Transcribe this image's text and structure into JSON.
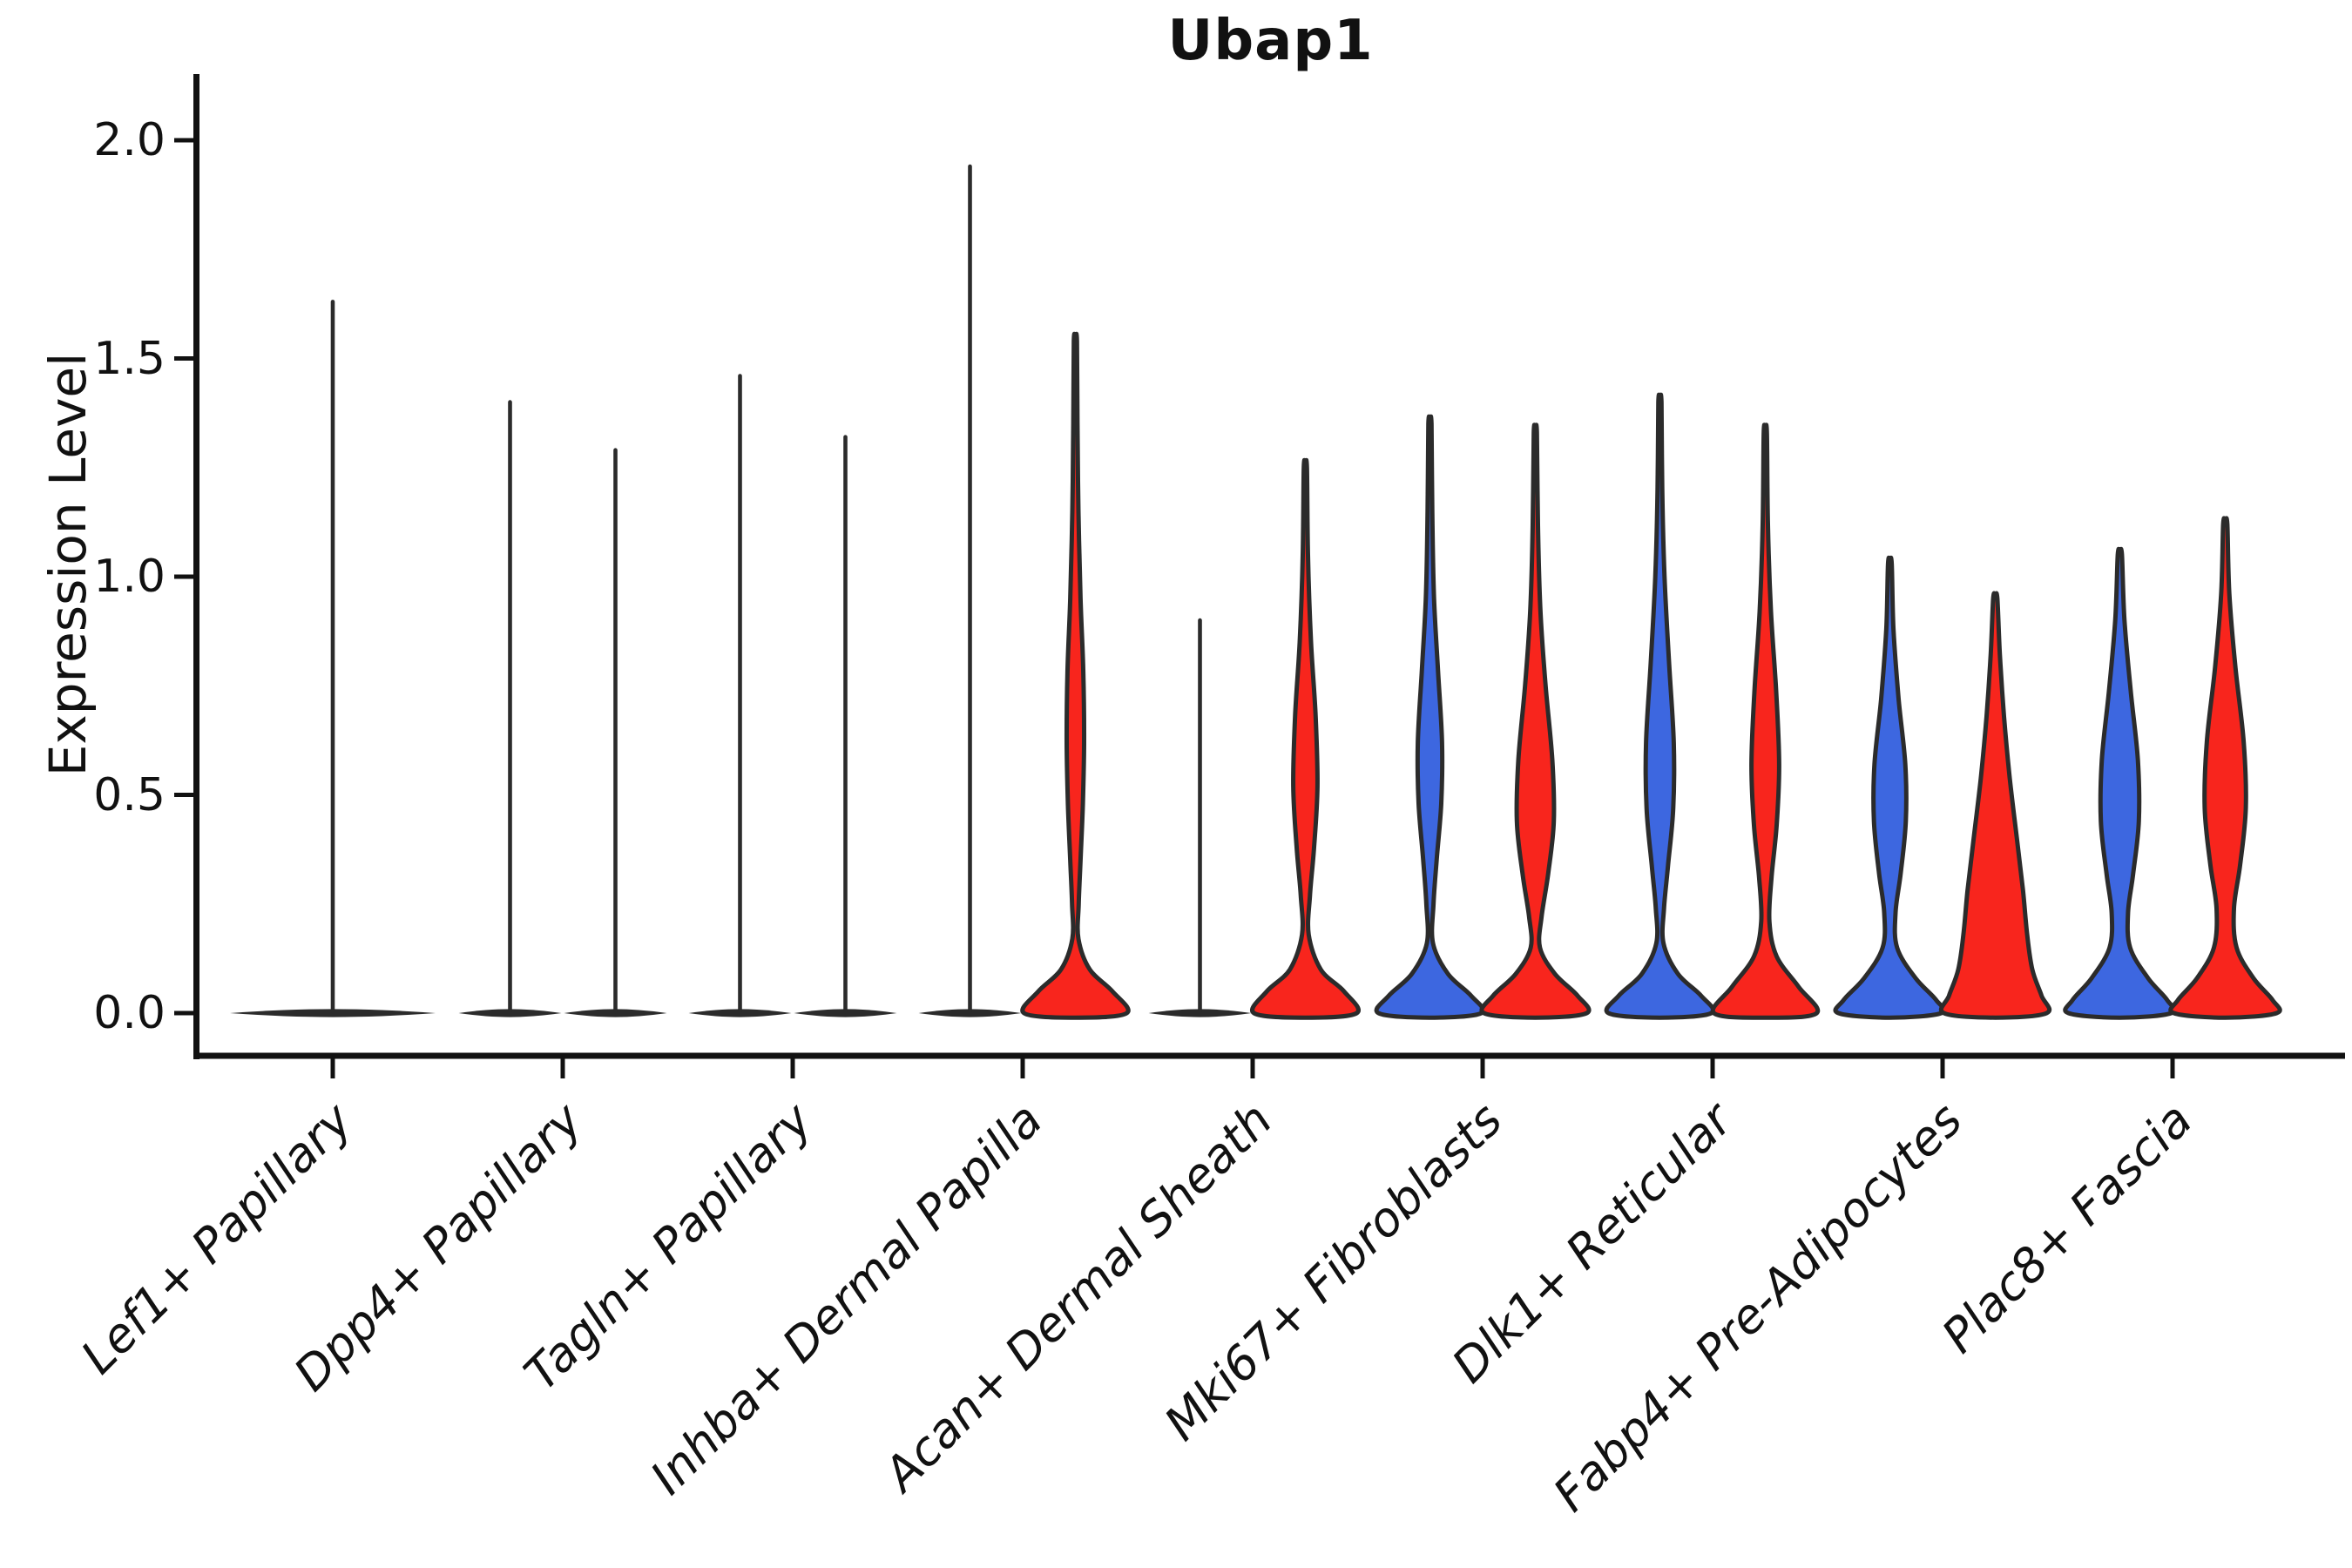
{
  "title": "Ubap1",
  "ylabel": "Expression Level",
  "colors": {
    "split_left_blue": "#3D67E0",
    "split_right_red": "#F8251D",
    "violin_outline": "#2B2B2B",
    "axis": "#111111",
    "background": "#FFFFFF"
  },
  "chart_data": {
    "type": "violin",
    "title": "Ubap1",
    "xlabel": "",
    "ylabel": "Expression Level",
    "ylim": [
      0,
      2.0
    ],
    "ytick_values": [
      0.0,
      0.5,
      1.0,
      1.5,
      2.0
    ],
    "ytick_labels": [
      "0.0",
      "0.5",
      "1.0",
      "1.5",
      "2.0"
    ],
    "grid": false,
    "legend": "none",
    "split_violins": true,
    "categories": [
      "Lef1+ Papillary",
      "Dpp4+ Papillary",
      "Tagln+ Papillary",
      "Inhba+ Dermal Papilla",
      "Acan+ Dermal Sheath",
      "Mki67+ Fibroblasts",
      "Dlk1+ Reticular",
      "Fabp4+ Pre-Adipocytes",
      "Plac8+ Fascia"
    ],
    "violins": [
      {
        "category": "Lef1+ Papillary",
        "groups": [
          {
            "side": "center",
            "style": "collapsed-line",
            "fill": null,
            "max_expression": 1.63,
            "width_scale": 2.0
          }
        ]
      },
      {
        "category": "Dpp4+ Papillary",
        "groups": [
          {
            "side": "left",
            "style": "collapsed-line",
            "fill": null,
            "max_expression": 1.4,
            "width_scale": 1.0
          },
          {
            "side": "right",
            "style": "collapsed-line",
            "fill": null,
            "max_expression": 1.29,
            "width_scale": 1.0
          }
        ]
      },
      {
        "category": "Tagln+ Papillary",
        "groups": [
          {
            "side": "left",
            "style": "collapsed-line",
            "fill": null,
            "max_expression": 1.46,
            "width_scale": 1.0
          },
          {
            "side": "right",
            "style": "collapsed-line",
            "fill": null,
            "max_expression": 1.32,
            "width_scale": 1.0
          }
        ]
      },
      {
        "category": "Inhba+ Dermal Papilla",
        "groups": [
          {
            "side": "left",
            "style": "collapsed-line",
            "fill": null,
            "max_expression": 1.94,
            "width_scale": 1.0
          },
          {
            "side": "right",
            "style": "filled",
            "fill": "#F8251D",
            "max_expression": 1.54,
            "width_scale": 1.0,
            "profile": [
              [
                1.54,
                0.03
              ],
              [
                1.35,
                0.04
              ],
              [
                1.15,
                0.06
              ],
              [
                0.95,
                0.1
              ],
              [
                0.78,
                0.155
              ],
              [
                0.62,
                0.17
              ],
              [
                0.48,
                0.145
              ],
              [
                0.35,
                0.1
              ],
              [
                0.25,
                0.065
              ],
              [
                0.17,
                0.06
              ],
              [
                0.1,
                0.28
              ],
              [
                0.05,
                0.72
              ],
              [
                0.0,
                1.0
              ]
            ]
          }
        ]
      },
      {
        "category": "Acan+ Dermal Sheath",
        "groups": [
          {
            "side": "left",
            "style": "collapsed-line",
            "fill": null,
            "max_expression": 0.9,
            "width_scale": 1.0
          },
          {
            "side": "right",
            "style": "filled",
            "fill": "#F8251D",
            "max_expression": 1.25,
            "width_scale": 1.0,
            "profile": [
              [
                1.25,
                0.03
              ],
              [
                1.05,
                0.05
              ],
              [
                0.85,
                0.11
              ],
              [
                0.68,
                0.2
              ],
              [
                0.52,
                0.235
              ],
              [
                0.38,
                0.17
              ],
              [
                0.27,
                0.09
              ],
              [
                0.18,
                0.065
              ],
              [
                0.1,
                0.3
              ],
              [
                0.05,
                0.75
              ],
              [
                0.0,
                1.0
              ]
            ]
          }
        ]
      },
      {
        "category": "Mki67+ Fibroblasts",
        "groups": [
          {
            "side": "left",
            "style": "filled",
            "fill": "#3D67E0",
            "max_expression": 1.35,
            "width_scale": 1.0,
            "profile": [
              [
                1.35,
                0.03
              ],
              [
                1.15,
                0.045
              ],
              [
                0.95,
                0.08
              ],
              [
                0.78,
                0.16
              ],
              [
                0.62,
                0.235
              ],
              [
                0.48,
                0.22
              ],
              [
                0.35,
                0.13
              ],
              [
                0.25,
                0.07
              ],
              [
                0.16,
                0.06
              ],
              [
                0.09,
                0.35
              ],
              [
                0.04,
                0.8
              ],
              [
                0.0,
                1.0
              ]
            ]
          },
          {
            "side": "right",
            "style": "filled",
            "fill": "#F8251D",
            "max_expression": 1.33,
            "width_scale": 1.0,
            "profile": [
              [
                1.33,
                0.03
              ],
              [
                1.12,
                0.05
              ],
              [
                0.92,
                0.1
              ],
              [
                0.75,
                0.2
              ],
              [
                0.58,
                0.33
              ],
              [
                0.44,
                0.36
              ],
              [
                0.32,
                0.25
              ],
              [
                0.22,
                0.12
              ],
              [
                0.15,
                0.09
              ],
              [
                0.09,
                0.38
              ],
              [
                0.04,
                0.82
              ],
              [
                0.0,
                1.0
              ]
            ]
          }
        ]
      },
      {
        "category": "Dlk1+ Reticular",
        "groups": [
          {
            "side": "left",
            "style": "filled",
            "fill": "#3D67E0",
            "max_expression": 1.4,
            "width_scale": 1.0,
            "profile": [
              [
                1.4,
                0.03
              ],
              [
                1.2,
                0.045
              ],
              [
                1.0,
                0.09
              ],
              [
                0.8,
                0.18
              ],
              [
                0.62,
                0.27
              ],
              [
                0.47,
                0.26
              ],
              [
                0.34,
                0.16
              ],
              [
                0.24,
                0.08
              ],
              [
                0.16,
                0.07
              ],
              [
                0.09,
                0.35
              ],
              [
                0.04,
                0.8
              ],
              [
                0.0,
                1.0
              ]
            ]
          },
          {
            "side": "right",
            "style": "filled",
            "fill": "#F8251D",
            "max_expression": 1.33,
            "width_scale": 1.0,
            "profile": [
              [
                1.33,
                0.03
              ],
              [
                1.12,
                0.05
              ],
              [
                0.92,
                0.11
              ],
              [
                0.74,
                0.21
              ],
              [
                0.57,
                0.27
              ],
              [
                0.43,
                0.22
              ],
              [
                0.31,
                0.12
              ],
              [
                0.21,
                0.08
              ],
              [
                0.13,
                0.22
              ],
              [
                0.06,
                0.65
              ],
              [
                0.0,
                1.0
              ]
            ]
          }
        ]
      },
      {
        "category": "Fabp4+ Pre-Adipocytes",
        "groups": [
          {
            "side": "left",
            "style": "filled",
            "fill": "#3D67E0",
            "max_expression": 1.03,
            "width_scale": 1.0,
            "profile": [
              [
                1.03,
                0.035
              ],
              [
                0.88,
                0.07
              ],
              [
                0.72,
                0.17
              ],
              [
                0.57,
                0.3
              ],
              [
                0.44,
                0.31
              ],
              [
                0.32,
                0.21
              ],
              [
                0.23,
                0.11
              ],
              [
                0.15,
                0.14
              ],
              [
                0.08,
                0.5
              ],
              [
                0.03,
                0.9
              ],
              [
                0.0,
                1.0
              ]
            ]
          },
          {
            "side": "right",
            "style": "filled",
            "fill": "#F8251D",
            "max_expression": 0.95,
            "width_scale": 1.0,
            "profile": [
              [
                0.95,
                0.04
              ],
              [
                0.82,
                0.09
              ],
              [
                0.68,
                0.17
              ],
              [
                0.54,
                0.28
              ],
              [
                0.4,
                0.42
              ],
              [
                0.28,
                0.54
              ],
              [
                0.18,
                0.62
              ],
              [
                0.1,
                0.72
              ],
              [
                0.04,
                0.9
              ],
              [
                0.0,
                1.0
              ]
            ]
          }
        ]
      },
      {
        "category": "Plac8+ Fascia",
        "groups": [
          {
            "side": "left",
            "style": "filled",
            "fill": "#3D67E0",
            "max_expression": 1.05,
            "width_scale": 1.0,
            "profile": [
              [
                1.05,
                0.04
              ],
              [
                0.9,
                0.09
              ],
              [
                0.74,
                0.21
              ],
              [
                0.58,
                0.35
              ],
              [
                0.44,
                0.37
              ],
              [
                0.32,
                0.26
              ],
              [
                0.23,
                0.16
              ],
              [
                0.15,
                0.2
              ],
              [
                0.08,
                0.55
              ],
              [
                0.03,
                0.92
              ],
              [
                0.0,
                1.0
              ]
            ]
          },
          {
            "side": "right",
            "style": "filled",
            "fill": "#F8251D",
            "max_expression": 1.12,
            "width_scale": 1.0,
            "profile": [
              [
                1.12,
                0.04
              ],
              [
                0.96,
                0.08
              ],
              [
                0.79,
                0.2
              ],
              [
                0.62,
                0.36
              ],
              [
                0.47,
                0.4
              ],
              [
                0.34,
                0.29
              ],
              [
                0.24,
                0.17
              ],
              [
                0.15,
                0.22
              ],
              [
                0.08,
                0.55
              ],
              [
                0.03,
                0.92
              ],
              [
                0.0,
                1.0
              ]
            ]
          }
        ]
      }
    ]
  }
}
